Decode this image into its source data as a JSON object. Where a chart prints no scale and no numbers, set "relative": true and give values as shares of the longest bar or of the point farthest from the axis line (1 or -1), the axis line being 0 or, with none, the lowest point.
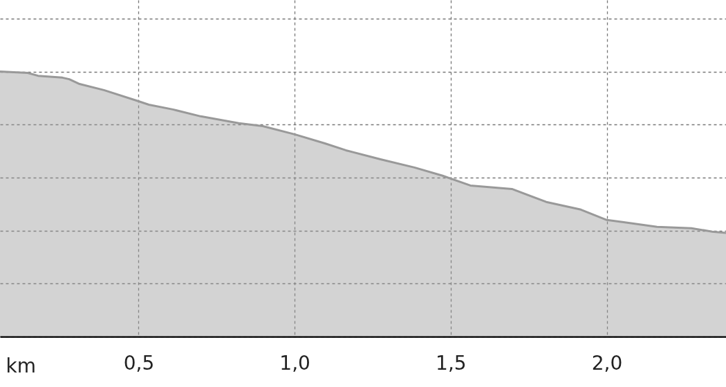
{
  "chart_data": {
    "type": "area",
    "relative": true,
    "xlabel": "km",
    "x": [
      0.056,
      0.145,
      0.178,
      0.256,
      0.278,
      0.311,
      0.389,
      0.5,
      0.533,
      0.61,
      0.699,
      0.821,
      0.898,
      1.0,
      1.097,
      1.164,
      1.275,
      1.384,
      1.474,
      1.563,
      1.696,
      1.806,
      1.917,
      2.0,
      2.05,
      2.161,
      2.271,
      2.338,
      2.382
    ],
    "series": [
      {
        "color": "#999999",
        "values": [
          1.0,
          0.995,
          0.984,
          0.977,
          0.971,
          0.953,
          0.93,
          0.888,
          0.875,
          0.857,
          0.831,
          0.805,
          0.794,
          0.763,
          0.729,
          0.703,
          0.669,
          0.638,
          0.607,
          0.57,
          0.557,
          0.508,
          0.479,
          0.44,
          0.432,
          0.414,
          0.409,
          0.396,
          0.391
        ]
      }
    ],
    "xlim": [
      0.056,
      2.382
    ],
    "xticks": [
      {
        "value": 0.5,
        "label": "0,5"
      },
      {
        "value": 1.0,
        "label": "1,0"
      },
      {
        "value": 1.5,
        "label": "1,5"
      },
      {
        "value": 2.0,
        "label": "2,0"
      }
    ],
    "grid": true
  }
}
